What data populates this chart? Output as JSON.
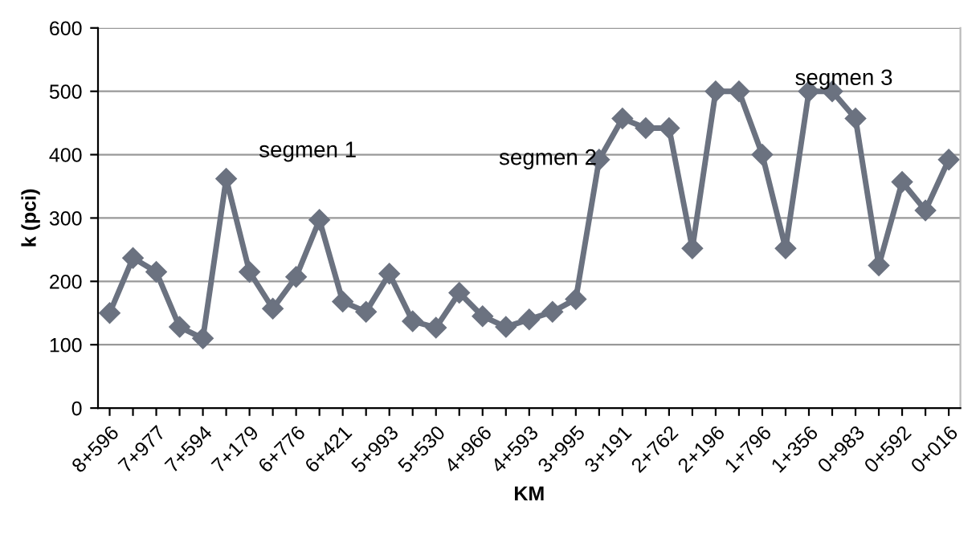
{
  "chart_data": {
    "type": "line",
    "xlabel": "KM",
    "ylabel": "k (pci)",
    "categories": [
      "8+596",
      null,
      "7+977",
      null,
      "7+594",
      null,
      "7+179",
      null,
      "6+776",
      null,
      "6+421",
      null,
      "5+993",
      null,
      "5+530",
      null,
      "4+966",
      null,
      "4+593",
      null,
      "3+995",
      null,
      "3+191",
      null,
      "2+762",
      null,
      "2+196",
      null,
      "1+796",
      null,
      "1+356",
      null,
      "0+983",
      null,
      "0+592",
      null,
      "0+016"
    ],
    "series": [
      {
        "color": "#6b7280",
        "values": [
          150,
          237,
          215,
          128,
          110,
          362,
          215,
          157,
          207,
          297,
          168,
          152,
          212,
          137,
          127,
          182,
          145,
          128,
          140,
          152,
          172,
          392,
          457,
          442,
          442,
          252,
          500,
          500,
          400,
          252,
          500,
          500,
          457,
          225,
          357,
          312,
          392
        ]
      }
    ],
    "ylim": [
      0,
      600
    ],
    "yticks": [
      0,
      100,
      200,
      300,
      400,
      500,
      600
    ],
    "grid": "y",
    "marker": "diamond",
    "line_style": "solid",
    "legend": false,
    "annotations": [
      "segmen 1",
      "segmen 2",
      "segmen 3"
    ]
  }
}
